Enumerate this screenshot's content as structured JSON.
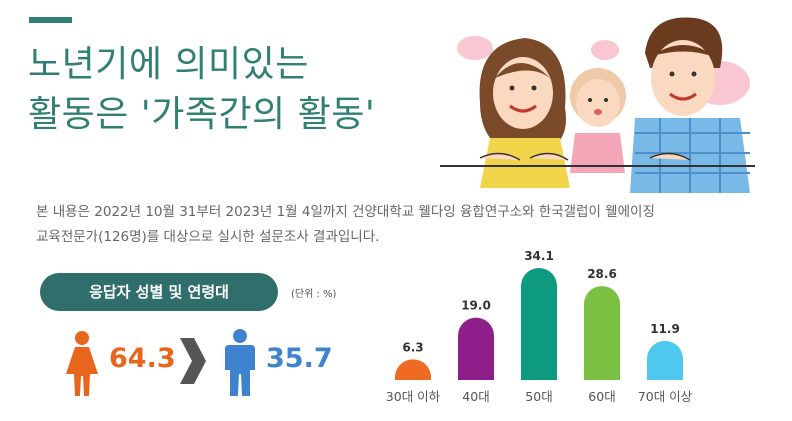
{
  "title": {
    "line1": "노년기에 의미있는",
    "line2": "활동은 '가족간의 활동'"
  },
  "description": {
    "line1": "본 내용은  2022년 10월 31부터 2023년 1월 4일까지 건양대학교 웰다잉 융합연구소와 한국갤럽이 웰에이징",
    "line2": "교육전문가(126명)를 대상으로 실시한 설문조사 결과입니다."
  },
  "respondents": {
    "label": "응답자 성별 및 연령대",
    "unit": "(단위 : %)",
    "female": "64.3",
    "male": "35.7"
  },
  "colors": {
    "accent": "#2f7f74",
    "female": "#e8651e",
    "male": "#3f83cf",
    "arrow": "#555555"
  },
  "chart_data": {
    "type": "bar",
    "categories": [
      "30대 이하",
      "40대",
      "50대",
      "60대",
      "70대 이상"
    ],
    "values": [
      6.3,
      19.0,
      34.1,
      28.6,
      11.9
    ],
    "value_labels": [
      "6.3",
      "19.0",
      "34.1",
      "28.6",
      "11.9"
    ],
    "colors": [
      "#ef6a23",
      "#8e1f8a",
      "#0e9a7e",
      "#7bbf43",
      "#4ec8ee"
    ],
    "grid": false,
    "legend": "none"
  }
}
